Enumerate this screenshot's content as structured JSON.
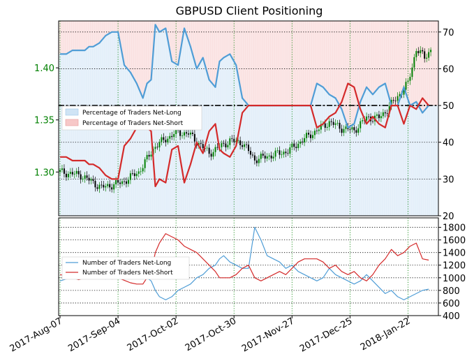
{
  "chart_data": [
    {
      "type": "line",
      "title": "GBPUSD Client Positioning",
      "left_axis": {
        "label": "",
        "ticks": [
          "1.30",
          "1.35",
          "1.40"
        ],
        "range": [
          1.258,
          1.445
        ],
        "color": "#008000"
      },
      "right_axis": {
        "label": "",
        "ticks": [
          "20",
          "30",
          "40",
          "50",
          "60",
          "70"
        ],
        "range": [
          20,
          73
        ],
        "color": "#000000"
      },
      "x_ticks": [
        "2017-Aug-07",
        "2017-Sep-04",
        "2017-Oct-02",
        "2017-Oct-30",
        "2017-Nov-27",
        "2017-Dec-25",
        "2018-Jan-22"
      ],
      "reference_line": {
        "value": 50,
        "style": "dash-dot",
        "color": "#000000"
      },
      "background_series": "Percentage of Traders Net-Long (daily shaded bars)",
      "legend": {
        "position": "left",
        "entries": [
          "Percentage of Traders Net-Long",
          "Percentage of Traders Net-Short"
        ]
      },
      "colors": {
        "long": "#4f9dd6",
        "short": "#d42a2a",
        "long_fill": "#cfe4f5",
        "short_fill": "#f7c8c8",
        "candle_up": "#008000",
        "candle_down": "#000000"
      },
      "x": [
        0,
        3,
        6,
        9,
        12,
        14,
        16,
        19,
        22,
        25,
        28,
        31,
        34,
        37,
        40,
        42,
        44,
        46,
        48,
        51,
        54,
        57,
        60,
        63,
        66,
        69,
        72,
        75,
        77,
        79,
        82,
        85,
        88,
        91,
        94,
        97,
        100,
        103,
        106,
        109,
        112,
        115,
        118,
        121,
        124,
        127,
        130,
        133,
        136,
        139,
        142,
        145,
        148,
        151,
        154,
        157,
        160,
        163,
        166,
        169,
        172,
        175,
        178
      ],
      "series": [
        {
          "name": "Percentage of Traders Net-Long",
          "values": [
            64,
            64,
            65,
            65,
            65,
            66,
            66,
            67,
            69,
            70,
            70,
            61,
            59,
            56,
            52,
            56,
            57,
            72,
            70,
            71,
            62,
            61,
            71,
            66,
            60,
            63,
            57,
            55,
            62,
            63,
            64,
            61,
            52,
            50,
            50,
            50,
            50,
            50,
            50,
            50,
            50,
            50,
            50,
            50,
            56,
            55,
            53,
            52,
            49,
            44,
            45,
            51,
            55,
            53,
            55,
            56,
            50,
            50,
            55,
            50,
            51,
            48,
            50
          ]
        },
        {
          "name": "Percentage of Traders Net-Short",
          "values": [
            36,
            36,
            35,
            35,
            35,
            34,
            34,
            33,
            31,
            30,
            30,
            39,
            41,
            44,
            48,
            44,
            43,
            28,
            30,
            29,
            38,
            39,
            29,
            34,
            40,
            37,
            43,
            45,
            38,
            37,
            36,
            39,
            48,
            50,
            50,
            50,
            50,
            50,
            50,
            50,
            50,
            50,
            50,
            50,
            44,
            45,
            47,
            48,
            51,
            56,
            55,
            49,
            45,
            47,
            45,
            44,
            50,
            50,
            45,
            50,
            49,
            52,
            50
          ]
        }
      ]
    },
    {
      "type": "line",
      "title": "",
      "right_axis": {
        "label": "",
        "ticks": [
          "400",
          "600",
          "800",
          "1000",
          "1200",
          "1400",
          "1600",
          "1800"
        ],
        "range": [
          400,
          1950
        ]
      },
      "x_ticks": [
        "2017-Aug-07",
        "2017-Sep-04",
        "2017-Oct-02",
        "2017-Oct-30",
        "2017-Nov-27",
        "2017-Dec-25",
        "2018-Jan-22"
      ],
      "legend": {
        "position": "left",
        "entries": [
          "Number of Traders Net-Long",
          "Number of Traders Net-Short"
        ]
      },
      "x": [
        0,
        3,
        6,
        9,
        12,
        14,
        16,
        19,
        22,
        25,
        28,
        31,
        34,
        37,
        40,
        42,
        44,
        46,
        48,
        51,
        54,
        57,
        60,
        63,
        66,
        69,
        72,
        75,
        77,
        79,
        82,
        85,
        88,
        91,
        94,
        97,
        100,
        103,
        106,
        109,
        112,
        115,
        118,
        121,
        124,
        127,
        130,
        133,
        136,
        139,
        142,
        145,
        148,
        151,
        154,
        157,
        160,
        163,
        166,
        169,
        172,
        175,
        178
      ],
      "series": [
        {
          "name": "Number of Traders Net-Long",
          "values": [
            950,
            980,
            1000,
            1030,
            1000,
            1010,
            1000,
            1000,
            980,
            1050,
            1020,
            1100,
            1150,
            1180,
            1100,
            1000,
            950,
            800,
            700,
            650,
            700,
            800,
            850,
            900,
            1000,
            1050,
            1150,
            1200,
            1300,
            1350,
            1250,
            1200,
            1150,
            1150,
            1800,
            1600,
            1350,
            1300,
            1250,
            1150,
            1200,
            1100,
            1050,
            1000,
            950,
            1000,
            1150,
            1050,
            1000,
            950,
            900,
            950,
            1050,
            950,
            850,
            750,
            800,
            700,
            650,
            700,
            750,
            800,
            820
          ]
        },
        {
          "name": "Number of Traders Net-Short",
          "values": [
            1050,
            1030,
            1000,
            970,
            1000,
            990,
            1000,
            1000,
            1020,
            980,
            1000,
            960,
            920,
            900,
            900,
            1000,
            1100,
            1400,
            1550,
            1700,
            1650,
            1600,
            1500,
            1450,
            1400,
            1300,
            1200,
            1100,
            1000,
            1000,
            1000,
            1050,
            1150,
            1200,
            1000,
            950,
            1000,
            1050,
            1100,
            1050,
            1150,
            1250,
            1300,
            1300,
            1300,
            1250,
            1150,
            1200,
            1100,
            1050,
            1100,
            1000,
            950,
            1050,
            1200,
            1300,
            1450,
            1350,
            1400,
            1500,
            1550,
            1300,
            1280
          ]
        }
      ]
    }
  ]
}
